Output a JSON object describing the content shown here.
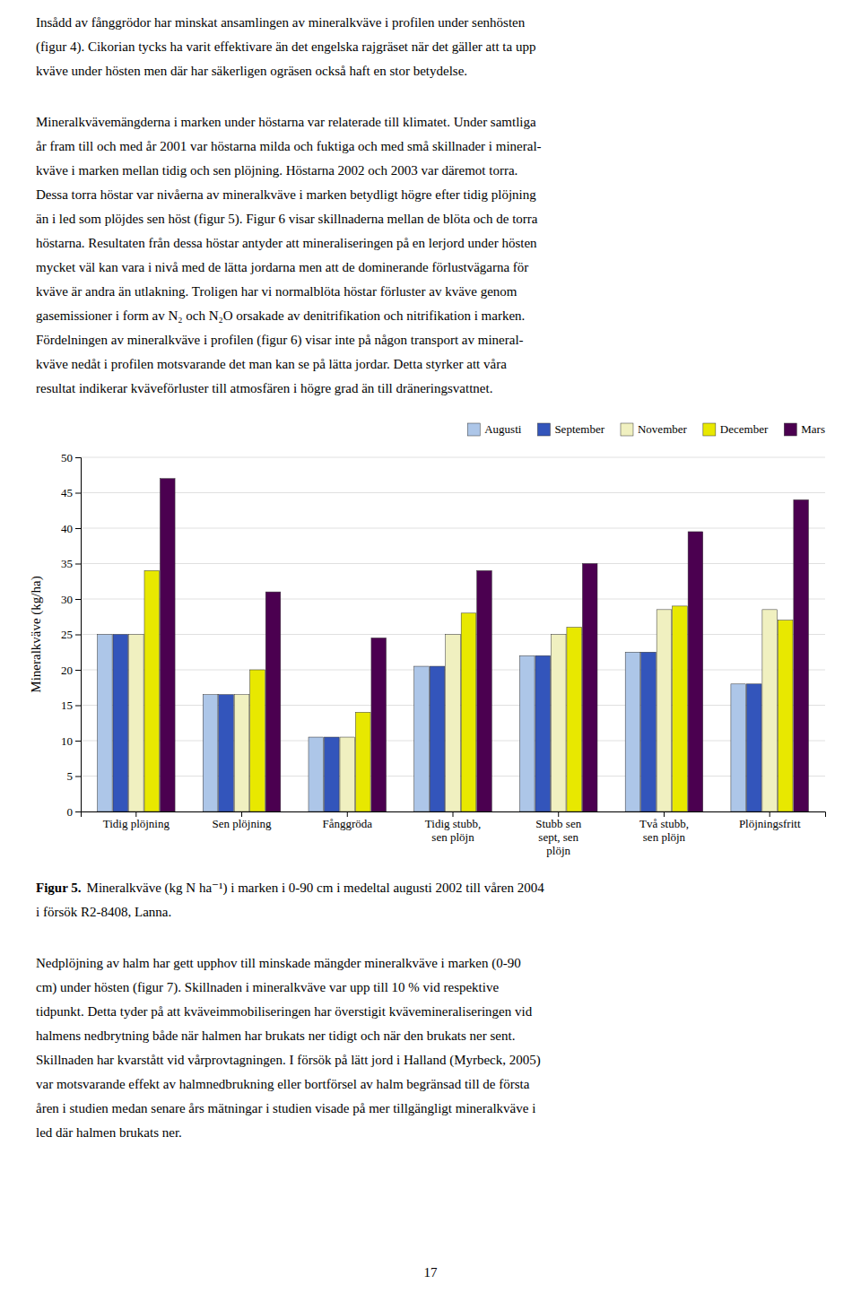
{
  "chart_data": {
    "type": "bar",
    "categories": [
      "Tidig plöjning",
      "Sen plöjning",
      "Fånggröda",
      "Tidig stubb,\nsen plöjn",
      "Stubb sen\nsept, sen\nplöjn",
      "Två stubb,\nsen plöjn",
      "Plöjningsfritt"
    ],
    "series": [
      {
        "name": "Augusti",
        "color": "#adc6e8",
        "values": [
          25,
          16.5,
          10.5,
          20.5,
          22,
          22.5,
          18
        ]
      },
      {
        "name": "September",
        "color": "#3355bb",
        "values": [
          25,
          16.5,
          10.5,
          20.5,
          22,
          22.5,
          18
        ]
      },
      {
        "name": "November",
        "color": "#f0f0c0",
        "values": [
          25,
          16.5,
          10.5,
          25,
          25,
          28.5,
          28.5
        ]
      },
      {
        "name": "December",
        "color": "#e8e800",
        "values": [
          34,
          20,
          14,
          28,
          26,
          29,
          27
        ]
      },
      {
        "name": "Mars",
        "color": "#4b0050",
        "values": [
          47,
          31,
          24.5,
          34,
          35,
          39.5,
          44
        ]
      }
    ],
    "ylabel": "Mineralkväve (kg/ha)",
    "ylim": [
      0,
      50
    ],
    "yticks": [
      0,
      5,
      10,
      15,
      20,
      25,
      30,
      35,
      40,
      45,
      50
    ],
    "grid": true,
    "legend": "upper right"
  },
  "para1_lines": [
    "Insådd av fånggrödor har minskat ansamlingen av mineralkväve i profilen under senhösten",
    "(figur 4). Cikorian tycks ha varit effektivare än det engelska rajgräset när det gäller att ta upp",
    "kväve under hösten men där har säkerligen ogräsen också haft en stor betydelse."
  ],
  "para2_lines": [
    "Mineralkvävemängderna i marken under höstarna var relaterade till klimatet. Under samtliga",
    "år fram till och med år 2001 var höstarna milda och fuktiga och med små skillnader i mineral-",
    "kväve i marken mellan tidig och sen plöjning. Höstarna 2002 och 2003 var däremot torra.",
    "Dessa torra höstar var nivåerna av mineralkväve i marken betydligt högre efter tidig plöjning",
    "än i led som plöjdes sen höst (figur 5). Figur 6 visar skillnaderna mellan de blöta och de torra",
    "höstarna. Resultaten från dessa höstar antyder att mineraliseringen på en lerjord under hösten",
    "mycket väl kan vara i nivå med de lätta jordarna men att de dominerande förlustvägarna för",
    "kväve är andra än utlakning. Troligen har vi normalblöta höstar förluster av kväve genom",
    "gasemissioner i form av N₂ och N₂O orsakade av denitrifikation och nitrifikation i marken.",
    "Fördelningen av mineralkväve i profilen (figur 6) visar inte på någon transport av mineral-",
    "kväve nedåt i profilen motsvarande det man kan se på lätta jordar. Detta styrker att våra",
    "resultat indikerar kväveförluster till atmosfären i högre grad än till dräneringsvattnet."
  ],
  "caption_bold": "Figur 5.",
  "caption_rest": "Mineralkväve (kg N ha⁻¹) i marken i 0-90 cm i medeltal augusti 2002 till våren 2004",
  "caption_line2": "i försök R2-8408, Lanna.",
  "para3_lines": [
    "Nedplöjning av halm har gett upphov till minskade mängder mineralkväve i marken (0-90",
    "cm) under hösten (figur 7). Skillnaden i mineralkväve var upp till 10 % vid respektive",
    "tidpunkt. Detta tyder på att kväveimmobiliseringen har överstigit kvävemineraliseringen vid",
    "halmens nedbrytning både när halmen har brukats ner tidigt och när den brukats ner sent.",
    "Skillnaden har kvarstått vid vårprovtagningen. I försök på lätt jord i Halland (Myrbeck, 2005)",
    "var motsvarande effekt av halmnedbrukning eller bortförsel av halm begränsad till de första",
    "åren i studien medan senare års mätningar i studien visade på mer tillgängligt mineralkväve i",
    "led där halmen brukats ner."
  ],
  "page_number": "17"
}
